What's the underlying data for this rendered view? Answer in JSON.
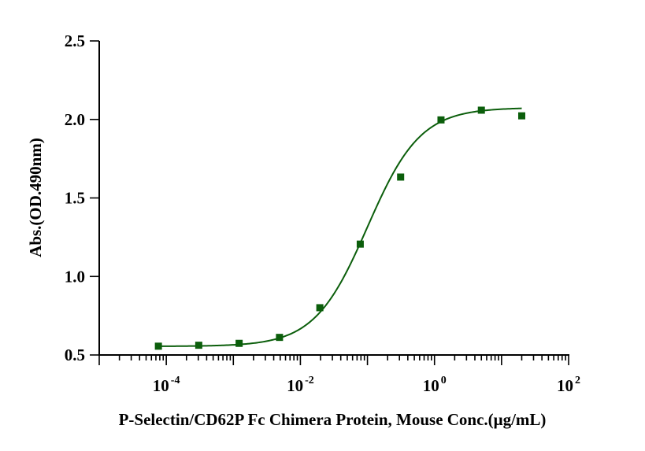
{
  "chart_data": {
    "type": "scatter",
    "xlabel": "P-Selectin/CD62P Fc Chimera Protein, Mouse Conc.(μg/mL)",
    "ylabel": "Abs.(OD.490nm)",
    "xscale": "log",
    "xlim": [
      1e-05,
      100
    ],
    "ylim": [
      0.5,
      2.5
    ],
    "yticks": [
      "0.5",
      "1.0",
      "1.5",
      "2.0",
      "2.5"
    ],
    "xticks": [
      {
        "base": "10",
        "exp": "-4",
        "value": 0.0001
      },
      {
        "base": "10",
        "exp": "-2",
        "value": 0.01
      },
      {
        "base": "10",
        "exp": "0",
        "value": 1
      },
      {
        "base": "10",
        "exp": "2",
        "value": 100
      }
    ],
    "grid": false,
    "marker_color": "#0b5e0b",
    "curve_color": "#0b5e0b",
    "series": [
      {
        "marker": "square",
        "points": [
          {
            "x": 7.63e-05,
            "y": 0.556
          },
          {
            "x": 0.000305,
            "y": 0.562
          },
          {
            "x": 0.00122,
            "y": 0.574
          },
          {
            "x": 0.00488,
            "y": 0.612
          },
          {
            "x": 0.0195,
            "y": 0.801
          },
          {
            "x": 0.0781,
            "y": 1.206
          },
          {
            "x": 0.3125,
            "y": 1.633
          },
          {
            "x": 1.25,
            "y": 1.997
          },
          {
            "x": 5,
            "y": 2.059
          },
          {
            "x": 20,
            "y": 2.023
          }
        ]
      }
    ],
    "fit": {
      "model": "4PL",
      "bottom": 0.555,
      "top": 2.075,
      "ec50": 0.1,
      "hill": 1.1
    }
  }
}
